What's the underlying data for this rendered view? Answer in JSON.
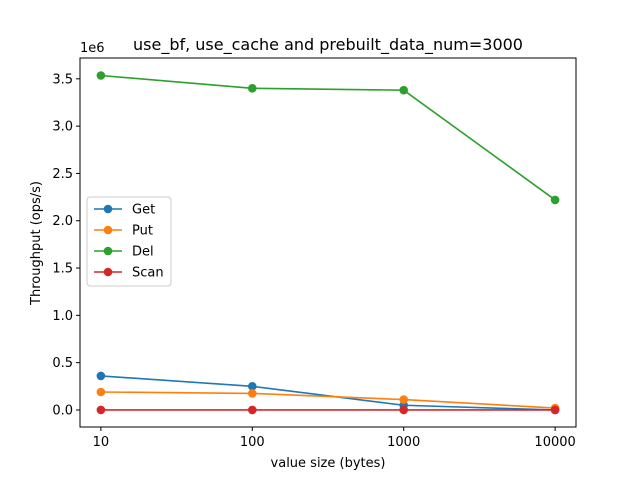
{
  "chart_data": {
    "type": "line",
    "title": "use_bf, use_cache and prebuilt_data_num=3000",
    "xlabel": "value size (bytes)",
    "ylabel": "Throughput (ops/s)",
    "x_scale": "log",
    "x": [
      10,
      100,
      1000,
      10000
    ],
    "x_tick_labels": [
      "10",
      "100",
      "1000",
      "10000"
    ],
    "y_multiplier_label": "1e6",
    "y_ticks": [
      0.0,
      0.5,
      1.0,
      1.5,
      2.0,
      2.5,
      3.0,
      3.5
    ],
    "y_tick_labels": [
      "0.0",
      "0.5",
      "1.0",
      "1.5",
      "2.0",
      "2.5",
      "3.0",
      "3.5"
    ],
    "ylim": [
      -0.18,
      3.72
    ],
    "grid": false,
    "legend_position": "center-left",
    "series": [
      {
        "name": "Get",
        "color": "#1f77b4",
        "values": [
          0.36,
          0.25,
          0.05,
          0.0
        ]
      },
      {
        "name": "Put",
        "color": "#ff7f0e",
        "values": [
          0.19,
          0.175,
          0.11,
          0.02
        ]
      },
      {
        "name": "Del",
        "color": "#2ca02c",
        "values": [
          3.535,
          3.4,
          3.38,
          2.22
        ]
      },
      {
        "name": "Scan",
        "color": "#d62728",
        "values": [
          0.0,
          0.0,
          0.0,
          0.0
        ]
      }
    ]
  }
}
